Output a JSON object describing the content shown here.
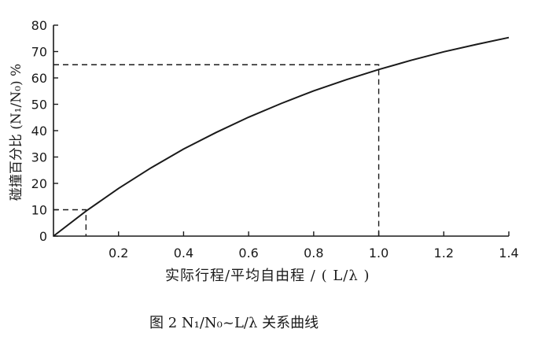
{
  "chart_data": {
    "type": "line",
    "title": "图 2   N₁/N₀~L/λ 关系曲线",
    "xlabel": "实际行程/平均自由程 / ( L/λ )",
    "ylabel": "碰撞百分比 (N₁/N₀) %",
    "xlim": [
      0,
      1.4
    ],
    "ylim": [
      0,
      80
    ],
    "x_ticks": [
      "0.2",
      "0.4",
      "0.6",
      "0.8",
      "1.0",
      "1.2",
      "1.4"
    ],
    "y_ticks": [
      "0",
      "10",
      "20",
      "30",
      "40",
      "50",
      "60",
      "70",
      "80"
    ],
    "grid": false,
    "series": [
      {
        "x": [
          0,
          0.1,
          0.2,
          0.3,
          0.4,
          0.5,
          0.6,
          0.7,
          0.8,
          0.9,
          1.0,
          1.1,
          1.2,
          1.3,
          1.4
        ],
        "y": [
          0,
          9.5,
          18.1,
          25.9,
          33.0,
          39.3,
          45.1,
          50.3,
          55.1,
          59.3,
          63.2,
          66.7,
          69.9,
          72.7,
          75.3
        ]
      }
    ],
    "reference_lines": [
      {
        "x": 0.1,
        "y": 10
      },
      {
        "x": 1.0,
        "y": 65
      }
    ]
  }
}
